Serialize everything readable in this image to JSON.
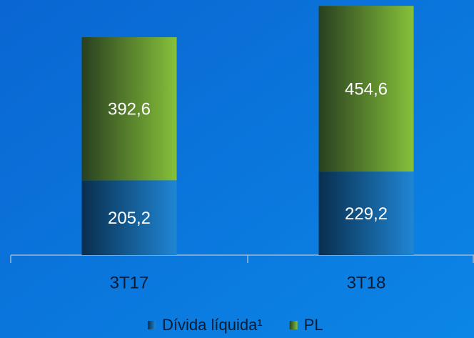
{
  "chart_data": {
    "type": "stacked_bar",
    "categories": [
      "3T17",
      "3T18"
    ],
    "series": [
      {
        "name": "Dívida líquida¹",
        "color": "#1f86d4",
        "values": [
          205.2,
          229.2
        ],
        "value_labels": [
          "205,2",
          "229,2"
        ]
      },
      {
        "name": "PL",
        "color": "#86c13a",
        "values": [
          392.6,
          454.6
        ],
        "value_labels": [
          "392,6",
          "454,6"
        ]
      }
    ],
    "ylim": [
      0,
      690
    ]
  }
}
